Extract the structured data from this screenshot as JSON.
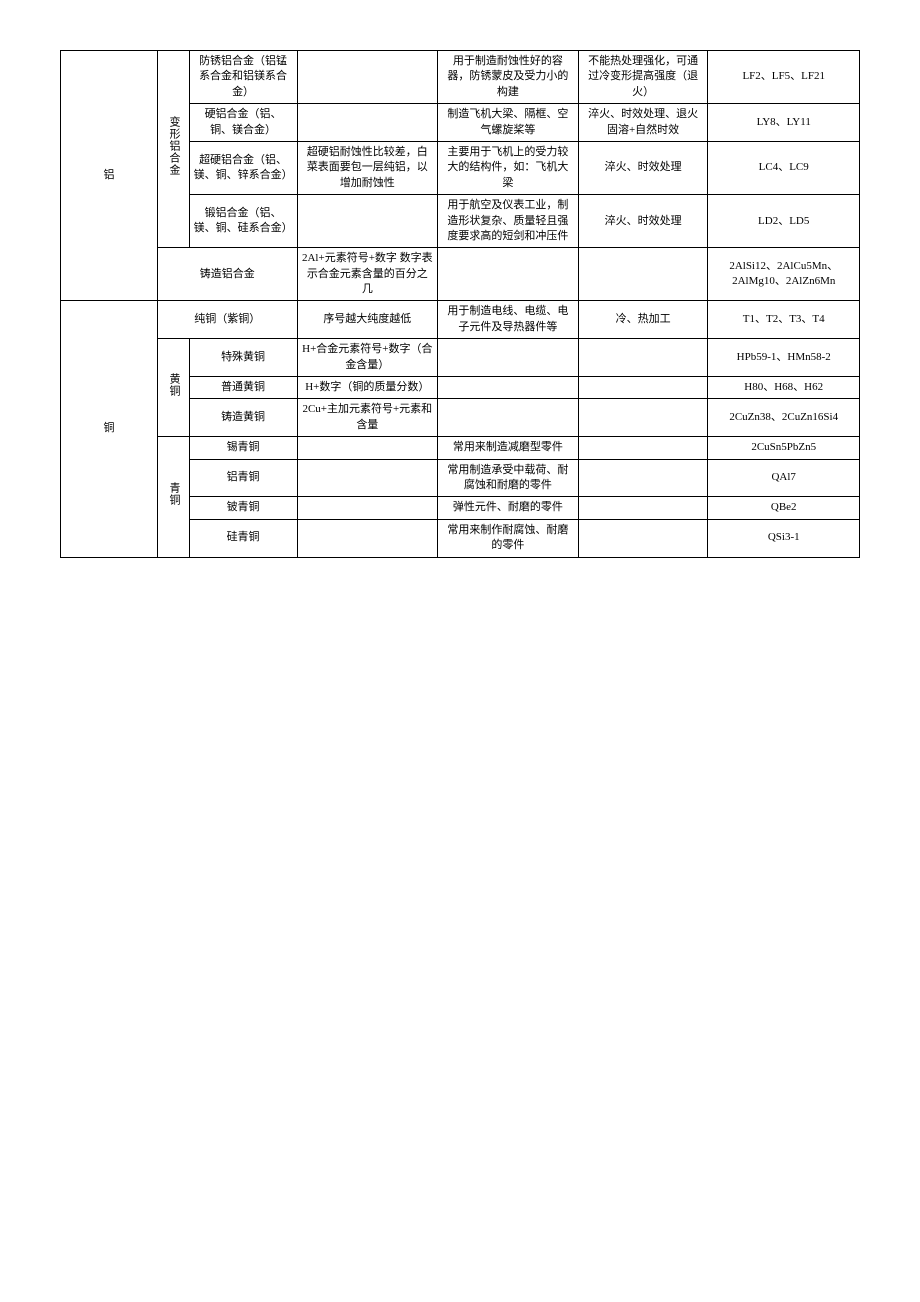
{
  "materials": {
    "aluminum": {
      "label": "铝",
      "deformed": {
        "label": "变形铝合金",
        "rows": [
          {
            "name": "防锈铝合金（铝锰系合金和铝镁系合金）",
            "note": "",
            "usage": "用于制造耐蚀性好的容器，防锈蒙皮及受力小的构建",
            "treatment": "不能热处理强化，可通过冷变形提高强度（退火）",
            "code": "LF2、LF5、LF21"
          },
          {
            "name": "硬铝合金（铝、铜、镁合金）",
            "note": "",
            "usage": "制造飞机大梁、隔框、空气螺旋桨等",
            "treatment": "淬火、时效处理、退火固溶+自然时效",
            "code": "LY8、LY11"
          },
          {
            "name": "超硬铝合金（铝、镁、铜、锌系合金）",
            "note": "超硬铝耐蚀性比较差，白菜表面要包一层纯铝，以增加耐蚀性",
            "usage": "主要用于飞机上的受力较大的结构件，如：飞机大梁",
            "treatment": "淬火、时效处理",
            "code": "LC4、LC9"
          },
          {
            "name": "锻铝合金（铝、镁、铜、硅系合金）",
            "note": "",
            "usage": "用于航空及仪表工业，制造形状复杂、质量轻且强度要求高的短剑和冲压件",
            "treatment": "淬火、时效处理",
            "code": "LD2、LD5"
          }
        ]
      },
      "cast": {
        "name": "铸造铝合金",
        "note": "2Al+元素符号+数字 数字表示合金元素含量的百分之几",
        "usage": "",
        "treatment": "",
        "code": "2AlSi12、2AlCu5Mn、2AlMg10、2AlZn6Mn"
      }
    },
    "copper": {
      "label": "铜",
      "pure": {
        "name": "纯铜（紫铜）",
        "note": "序号越大纯度越低",
        "usage": "用于制造电线、电缆、电子元件及导热器件等",
        "treatment": "冷、热加工",
        "code": "T1、T2、T3、T4"
      },
      "brass": {
        "label": "黄铜",
        "rows": [
          {
            "name": "特殊黄铜",
            "note": "H+合金元素符号+数字（合金含量）",
            "usage": "",
            "treatment": "",
            "code": "HPb59-1、HMn58-2"
          },
          {
            "name": "普通黄铜",
            "note": "H+数字（铜的质量分数）",
            "usage": "",
            "treatment": "",
            "code": "H80、H68、H62"
          },
          {
            "name": "铸造黄铜",
            "note": "2Cu+主加元素符号+元素和含量",
            "usage": "",
            "treatment": "",
            "code": "2CuZn38、2CuZn16Si4"
          }
        ]
      },
      "bronze": {
        "label": "青铜",
        "rows": [
          {
            "name": "锡青铜",
            "note": "",
            "usage": "常用来制造减磨型零件",
            "treatment": "",
            "code": "2CuSn5PbZn5"
          },
          {
            "name": "铝青铜",
            "note": "",
            "usage": "常用制造承受中载荷、耐腐蚀和耐磨的零件",
            "treatment": "",
            "code": "QAl7"
          },
          {
            "name": "铍青铜",
            "note": "",
            "usage": "弹性元件、耐磨的零件",
            "treatment": "",
            "code": "QBe2"
          },
          {
            "name": "硅青铜",
            "note": "",
            "usage": "常用来制作耐腐蚀、耐磨的零件",
            "treatment": "",
            "code": "QSi3-1"
          }
        ]
      }
    }
  }
}
